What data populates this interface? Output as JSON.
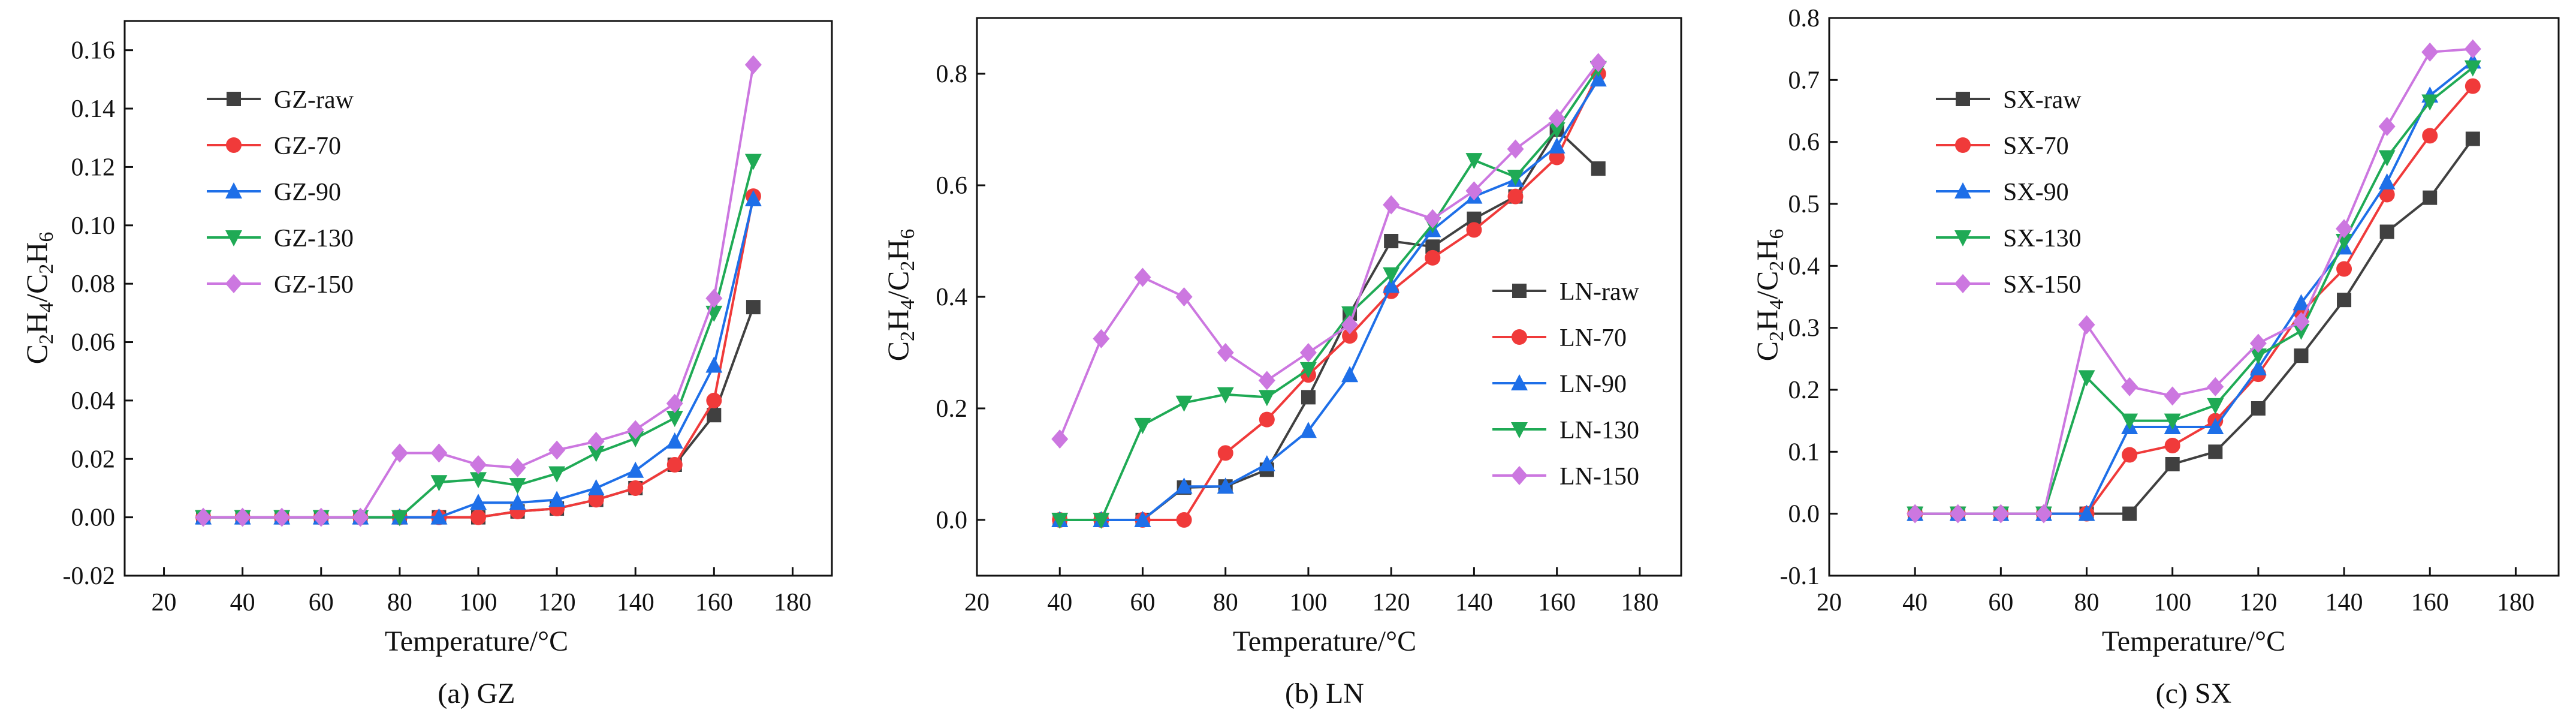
{
  "figure": {
    "ylabel_parts": [
      "C",
      "2",
      "H",
      "4",
      "/C",
      "2",
      "H",
      "6"
    ]
  },
  "chart_data": [
    {
      "type": "line",
      "panel": "a",
      "caption": "(a) GZ",
      "xlabel": "Temperature/°C",
      "ylabel": "C2H4/C2H6",
      "xlim": [
        10,
        190
      ],
      "ylim": [
        -0.02,
        0.17
      ],
      "xticks": [
        20,
        40,
        60,
        80,
        100,
        120,
        140,
        160,
        180
      ],
      "yticks": [
        -0.02,
        0.0,
        0.02,
        0.04,
        0.06,
        0.08,
        0.1,
        0.12,
        0.14,
        0.16
      ],
      "ytick_decimals": 2,
      "legend_position": "upper-left",
      "x": [
        30,
        40,
        50,
        60,
        70,
        80,
        90,
        100,
        110,
        120,
        130,
        140,
        150,
        160,
        170
      ],
      "series": [
        {
          "name": "GZ-raw",
          "color": "#404040",
          "marker": "square",
          "values": [
            0,
            0,
            0,
            0,
            0,
            0,
            0,
            0,
            0.002,
            0.003,
            0.006,
            0.01,
            0.018,
            0.035,
            0.072
          ]
        },
        {
          "name": "GZ-70",
          "color": "#f03a3a",
          "marker": "circle",
          "values": [
            0,
            0,
            0,
            0,
            0,
            0,
            0,
            0,
            0.002,
            0.003,
            0.006,
            0.01,
            0.018,
            0.04,
            0.11
          ]
        },
        {
          "name": "GZ-90",
          "color": "#1e6fe8",
          "marker": "triangle-up",
          "values": [
            0,
            0,
            0,
            0,
            0,
            0,
            0,
            0.005,
            0.005,
            0.006,
            0.01,
            0.016,
            0.026,
            0.052,
            0.109
          ]
        },
        {
          "name": "GZ-130",
          "color": "#1faa55",
          "marker": "triangle-down",
          "values": [
            0,
            0,
            0,
            0,
            0,
            0,
            0.012,
            0.013,
            0.011,
            0.015,
            0.022,
            0.027,
            0.034,
            0.07,
            0.122
          ]
        },
        {
          "name": "GZ-150",
          "color": "#cc77e0",
          "marker": "diamond",
          "values": [
            0,
            0,
            0,
            0,
            0,
            0.022,
            0.022,
            0.018,
            0.017,
            0.023,
            0.026,
            0.03,
            0.039,
            0.075,
            0.155
          ]
        }
      ]
    },
    {
      "type": "line",
      "panel": "b",
      "caption": "(b) LN",
      "xlabel": "Temperature/°C",
      "ylabel": "C2H4/C2H6",
      "xlim": [
        20,
        190
      ],
      "ylim": [
        -0.1,
        0.9
      ],
      "xticks": [
        20,
        40,
        60,
        80,
        100,
        120,
        140,
        160,
        180
      ],
      "yticks": [
        0.0,
        0.2,
        0.4,
        0.6,
        0.8
      ],
      "ytick_decimals": 1,
      "legend_position": "lower-right",
      "x": [
        40,
        50,
        60,
        70,
        80,
        90,
        100,
        110,
        120,
        130,
        140,
        150,
        160,
        170
      ],
      "series": [
        {
          "name": "LN-raw",
          "color": "#404040",
          "marker": "square",
          "values": [
            0,
            0,
            0,
            0.058,
            0.06,
            0.09,
            0.22,
            0.37,
            0.5,
            0.49,
            0.54,
            0.58,
            0.7,
            0.63
          ]
        },
        {
          "name": "LN-70",
          "color": "#f03a3a",
          "marker": "circle",
          "values": [
            0,
            0,
            0,
            0,
            0.12,
            0.18,
            0.26,
            0.33,
            0.41,
            0.47,
            0.52,
            0.58,
            0.65,
            0.8
          ]
        },
        {
          "name": "LN-90",
          "color": "#1e6fe8",
          "marker": "triangle-up",
          "values": [
            0,
            0,
            0,
            0.06,
            0.06,
            0.1,
            0.16,
            0.26,
            0.42,
            0.52,
            0.58,
            0.61,
            0.67,
            0.79
          ]
        },
        {
          "name": "LN-130",
          "color": "#1faa55",
          "marker": "triangle-down",
          "values": [
            0,
            0,
            0.17,
            0.21,
            0.225,
            0.22,
            0.27,
            0.37,
            0.44,
            0.53,
            0.645,
            0.615,
            0.7,
            0.81
          ]
        },
        {
          "name": "LN-150",
          "color": "#cc77e0",
          "marker": "diamond",
          "values": [
            0.145,
            0.325,
            0.435,
            0.4,
            0.3,
            0.25,
            0.3,
            0.35,
            0.565,
            0.54,
            0.59,
            0.665,
            0.72,
            0.82
          ]
        }
      ]
    },
    {
      "type": "line",
      "panel": "c",
      "caption": "(c) SX",
      "xlabel": "Temperature/°C",
      "ylabel": "C2H4/C2H6",
      "xlim": [
        20,
        190
      ],
      "ylim": [
        -0.1,
        0.8
      ],
      "xticks": [
        20,
        40,
        60,
        80,
        100,
        120,
        140,
        160,
        180
      ],
      "yticks": [
        -0.1,
        0.0,
        0.1,
        0.2,
        0.3,
        0.4,
        0.5,
        0.6,
        0.7,
        0.8
      ],
      "ytick_decimals": 1,
      "legend_position": "upper-left",
      "x": [
        40,
        50,
        60,
        70,
        80,
        90,
        100,
        110,
        120,
        130,
        140,
        150,
        160,
        170
      ],
      "series": [
        {
          "name": "SX-raw",
          "color": "#404040",
          "marker": "square",
          "values": [
            0,
            0,
            0,
            0,
            0,
            0,
            0.08,
            0.1,
            0.17,
            0.255,
            0.345,
            0.455,
            0.51,
            0.605
          ]
        },
        {
          "name": "SX-70",
          "color": "#f03a3a",
          "marker": "circle",
          "values": [
            0,
            0,
            0,
            0,
            0,
            0.095,
            0.11,
            0.15,
            0.225,
            0.325,
            0.395,
            0.515,
            0.61,
            0.69
          ]
        },
        {
          "name": "SX-90",
          "color": "#1e6fe8",
          "marker": "triangle-up",
          "values": [
            0,
            0,
            0,
            0,
            0,
            0.14,
            0.14,
            0.14,
            0.235,
            0.34,
            0.43,
            0.535,
            0.675,
            0.73
          ]
        },
        {
          "name": "SX-130",
          "color": "#1faa55",
          "marker": "triangle-down",
          "values": [
            0,
            0,
            0,
            0,
            0.22,
            0.15,
            0.15,
            0.175,
            0.255,
            0.295,
            0.44,
            0.575,
            0.665,
            0.72
          ]
        },
        {
          "name": "SX-150",
          "color": "#cc77e0",
          "marker": "diamond",
          "values": [
            0,
            0,
            0,
            0,
            0.305,
            0.205,
            0.19,
            0.205,
            0.275,
            0.31,
            0.46,
            0.625,
            0.745,
            0.75
          ]
        }
      ]
    }
  ]
}
